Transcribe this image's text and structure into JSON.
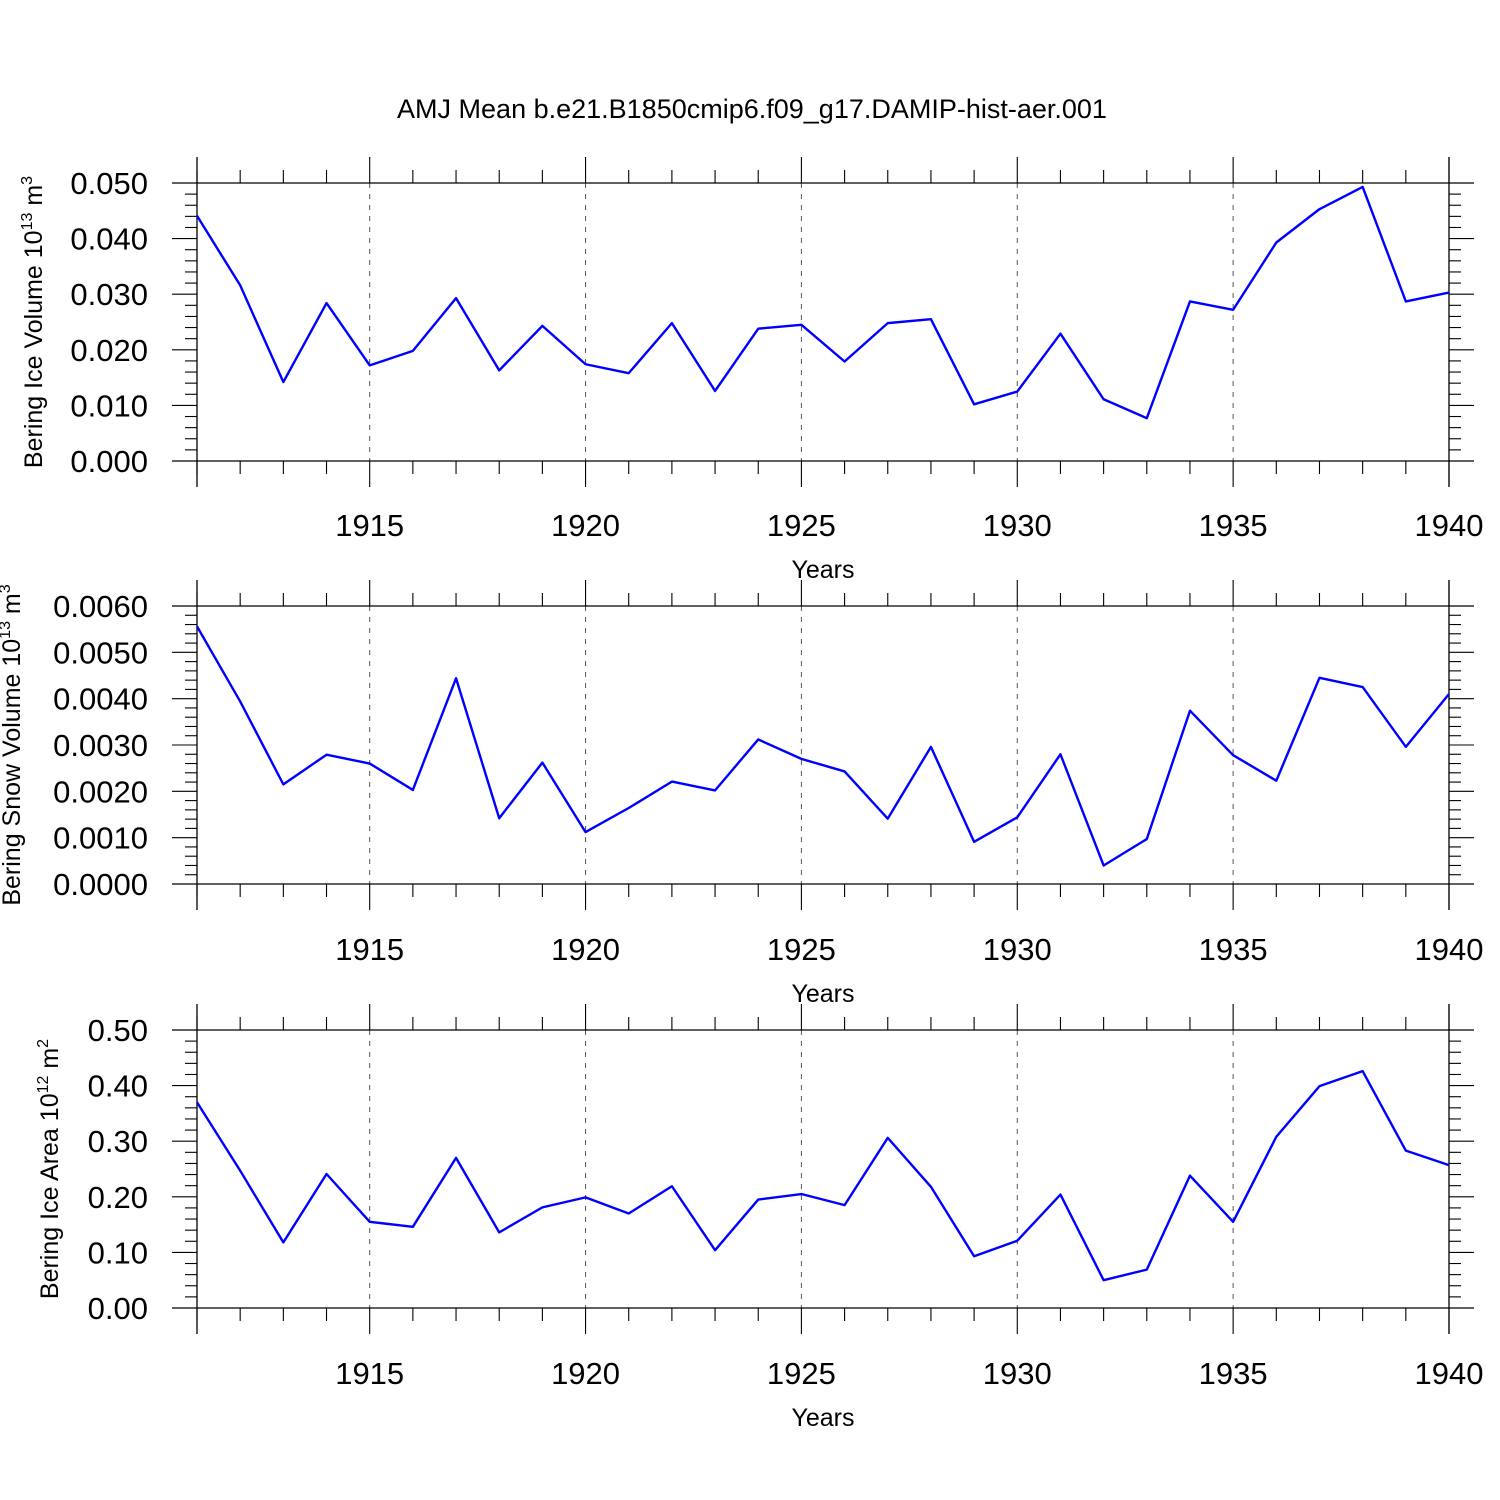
{
  "title": "AMJ Mean b.e21.B1850cmip6.f09_g17.DAMIP-hist-aer.001",
  "colors": {
    "line": "#0000ff",
    "axis": "#000000",
    "grid": "#555555",
    "background": "#ffffff"
  },
  "chart_data": [
    {
      "type": "line",
      "title": "AMJ Mean b.e21.B1850cmip6.f09_g17.DAMIP-hist-aer.001",
      "xlabel": "Years",
      "ylabel": {
        "main": "Bering Ice Volume 10",
        "sup": "13",
        "unit": " m",
        "unit_sup": "3"
      },
      "xlim": [
        1911,
        1940
      ],
      "ylim": [
        0,
        0.05
      ],
      "yticks": [
        0,
        0.01,
        0.02,
        0.03,
        0.04,
        0.05
      ],
      "ytick_labels": [
        "0.000",
        "0.010",
        "0.020",
        "0.030",
        "0.040",
        "0.050"
      ],
      "y_minor_step": 0.002,
      "xticks": [
        1915,
        1920,
        1925,
        1930,
        1935,
        1940
      ],
      "xtick_labels": [
        "1915",
        "1920",
        "1925",
        "1930",
        "1935",
        "1940"
      ],
      "x_minor_step": 1,
      "grid": "vertical dashed at major x ticks",
      "x": [
        1911,
        1912,
        1913,
        1914,
        1915,
        1916,
        1917,
        1918,
        1919,
        1920,
        1921,
        1922,
        1923,
        1924,
        1925,
        1926,
        1927,
        1928,
        1929,
        1930,
        1931,
        1932,
        1933,
        1934,
        1935,
        1936,
        1937,
        1938,
        1939,
        1940
      ],
      "series": [
        {
          "name": "Bering Ice Volume",
          "values": [
            0.0441,
            0.0316,
            0.0142,
            0.0284,
            0.0172,
            0.0198,
            0.0293,
            0.0163,
            0.0243,
            0.0174,
            0.0158,
            0.0248,
            0.0126,
            0.0238,
            0.0245,
            0.0179,
            0.0248,
            0.0255,
            0.0102,
            0.0125,
            0.0229,
            0.0111,
            0.0077,
            0.0287,
            0.0272,
            0.0393,
            0.0453,
            0.0493,
            0.0287,
            0.0303
          ]
        }
      ]
    },
    {
      "type": "line",
      "xlabel": "Years",
      "ylabel": {
        "main": "Bering Snow Volume 10",
        "sup": "13",
        "unit": " m",
        "unit_sup": "3"
      },
      "xlim": [
        1911,
        1940
      ],
      "ylim": [
        0,
        0.006
      ],
      "yticks": [
        0,
        0.001,
        0.002,
        0.003,
        0.004,
        0.005,
        0.006
      ],
      "ytick_labels": [
        "0.0000",
        "0.0010",
        "0.0020",
        "0.0030",
        "0.0040",
        "0.0050",
        "0.0060"
      ],
      "y_minor_step": 0.0002,
      "xticks": [
        1915,
        1920,
        1925,
        1930,
        1935,
        1940
      ],
      "xtick_labels": [
        "1915",
        "1920",
        "1925",
        "1930",
        "1935",
        "1940"
      ],
      "x_minor_step": 1,
      "grid": "vertical dashed at major x ticks",
      "x": [
        1911,
        1912,
        1913,
        1914,
        1915,
        1916,
        1917,
        1918,
        1919,
        1920,
        1921,
        1922,
        1923,
        1924,
        1925,
        1926,
        1927,
        1928,
        1929,
        1930,
        1931,
        1932,
        1933,
        1934,
        1935,
        1936,
        1937,
        1938,
        1939,
        1940
      ],
      "series": [
        {
          "name": "Bering Snow Volume",
          "values": [
            0.00556,
            0.00394,
            0.00215,
            0.00279,
            0.0026,
            0.00203,
            0.00444,
            0.00142,
            0.00262,
            0.00112,
            0.00164,
            0.00221,
            0.00202,
            0.00312,
            0.0027,
            0.00243,
            0.00141,
            0.00296,
            0.00091,
            0.00144,
            0.0028,
            0.0004,
            0.00097,
            0.00374,
            0.00278,
            0.00223,
            0.00445,
            0.00425,
            0.00296,
            0.0041
          ]
        }
      ]
    },
    {
      "type": "line",
      "xlabel": "Years",
      "ylabel": {
        "main": "Bering Ice Area 10",
        "sup": "12",
        "unit": " m",
        "unit_sup": "2"
      },
      "xlim": [
        1911,
        1940
      ],
      "ylim": [
        0,
        0.5
      ],
      "yticks": [
        0,
        0.1,
        0.2,
        0.3,
        0.4,
        0.5
      ],
      "ytick_labels": [
        "0.00",
        "0.10",
        "0.20",
        "0.30",
        "0.40",
        "0.50"
      ],
      "y_minor_step": 0.02,
      "xticks": [
        1915,
        1920,
        1925,
        1930,
        1935,
        1940
      ],
      "xtick_labels": [
        "1915",
        "1920",
        "1925",
        "1930",
        "1935",
        "1940"
      ],
      "x_minor_step": 1,
      "grid": "vertical dashed at major x ticks",
      "x": [
        1911,
        1912,
        1913,
        1914,
        1915,
        1916,
        1917,
        1918,
        1919,
        1920,
        1921,
        1922,
        1923,
        1924,
        1925,
        1926,
        1927,
        1928,
        1929,
        1930,
        1931,
        1932,
        1933,
        1934,
        1935,
        1936,
        1937,
        1938,
        1939,
        1940
      ],
      "series": [
        {
          "name": "Bering Ice Area",
          "values": [
            0.37,
            0.247,
            0.118,
            0.241,
            0.155,
            0.146,
            0.27,
            0.136,
            0.181,
            0.199,
            0.17,
            0.219,
            0.104,
            0.195,
            0.205,
            0.185,
            0.306,
            0.218,
            0.093,
            0.121,
            0.204,
            0.05,
            0.069,
            0.238,
            0.155,
            0.308,
            0.399,
            0.426,
            0.283,
            0.257
          ]
        }
      ]
    }
  ]
}
